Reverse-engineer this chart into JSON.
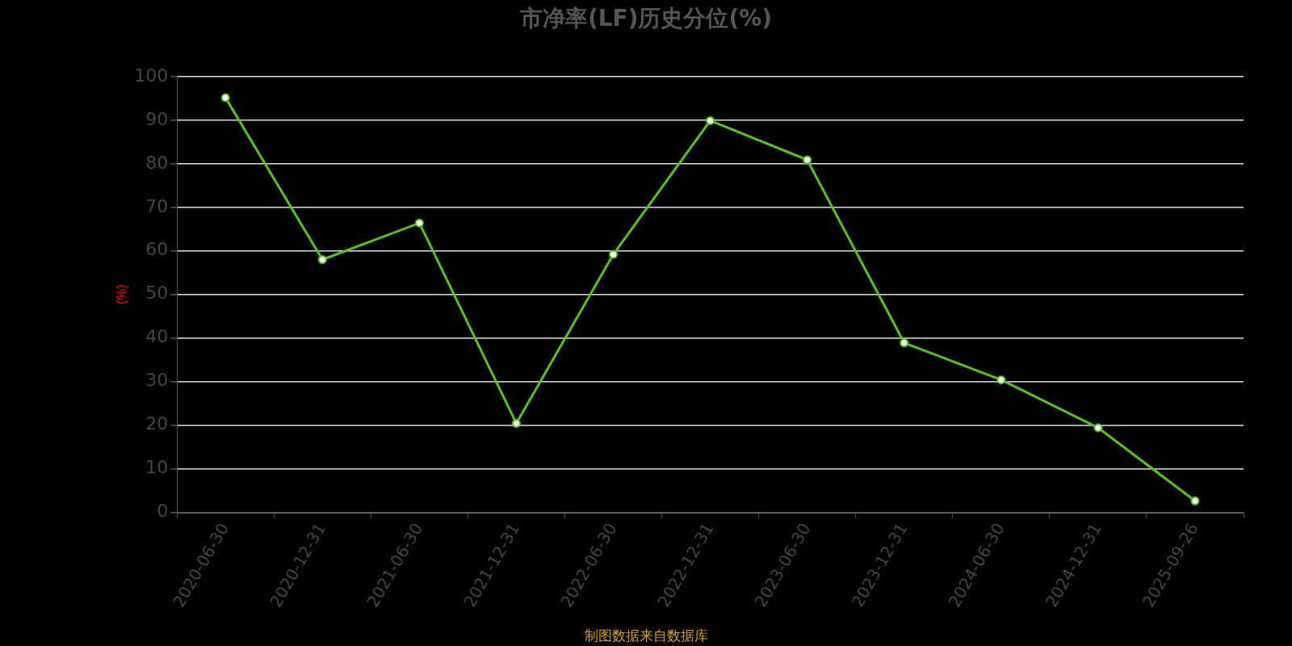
{
  "chart_data": {
    "type": "line",
    "title": "市净率(LF)历史分位(%)",
    "ylabel": "(%)",
    "categories": [
      "2020-06-30",
      "2020-12-31",
      "2021-06-30",
      "2021-12-31",
      "2022-06-30",
      "2022-12-31",
      "2023-06-30",
      "2023-12-31",
      "2024-06-30",
      "2024-12-31",
      "2025-09-26"
    ],
    "series": [
      {
        "color": "#52c41a",
        "values": [
          95.2,
          58.0,
          66.4,
          20.4,
          59.2,
          89.9,
          80.9,
          38.9,
          30.4,
          19.4,
          2.6
        ]
      }
    ],
    "ylim": [
      0,
      100
    ],
    "yticks": [
      0,
      10,
      20,
      30,
      40,
      50,
      60,
      70,
      80,
      90,
      100
    ],
    "grid": "y",
    "legend": false,
    "marker": "circle",
    "line_style": "solid",
    "annotations": [
      "制图数据来自数据库"
    ]
  }
}
